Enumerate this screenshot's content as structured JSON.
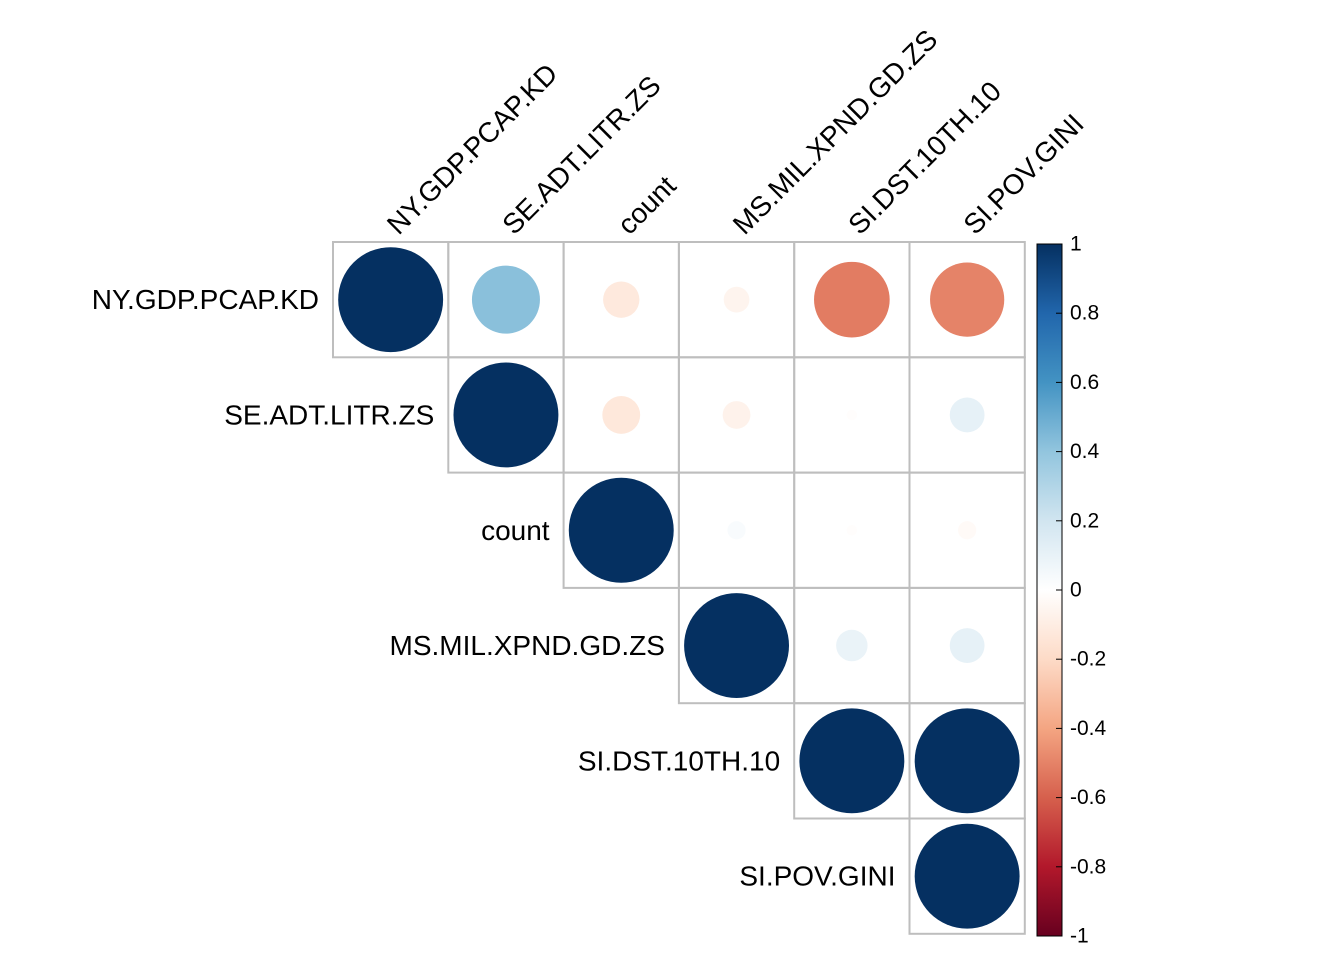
{
  "chart_data": {
    "type": "heatmap",
    "subtype": "correlation-upper-triangle-circles",
    "variables": [
      "NY.GDP.PCAP.KD",
      "SE.ADT.LITR.ZS",
      "count",
      "MS.MIL.XPND.GD.ZS",
      "SI.DST.10TH.10",
      "SI.POV.GINI"
    ],
    "matrix": [
      [
        1.0,
        0.42,
        -0.12,
        -0.06,
        -0.52,
        -0.5
      ],
      [
        0.42,
        1.0,
        -0.13,
        -0.07,
        -0.01,
        0.11
      ],
      [
        -0.12,
        -0.13,
        1.0,
        0.03,
        -0.01,
        -0.03
      ],
      [
        -0.06,
        -0.07,
        0.03,
        1.0,
        0.09,
        0.11
      ],
      [
        -0.52,
        -0.01,
        -0.01,
        0.09,
        1.0,
        1.0
      ],
      [
        -0.5,
        0.11,
        -0.03,
        0.11,
        1.0,
        1.0
      ]
    ],
    "legend": {
      "position": "right",
      "range": [
        -1,
        1
      ],
      "ticks": [
        "1",
        "0.8",
        "0.6",
        "0.4",
        "0.2",
        "0",
        "-0.2",
        "-0.4",
        "-0.6",
        "-0.8",
        "-1"
      ],
      "colors": [
        "#67001f",
        "#b2182b",
        "#d6604d",
        "#f4a582",
        "#fddbc7",
        "#ffffff",
        "#d1e5f0",
        "#92c5de",
        "#4393c3",
        "#2166ac",
        "#053061"
      ]
    },
    "grid": true
  }
}
